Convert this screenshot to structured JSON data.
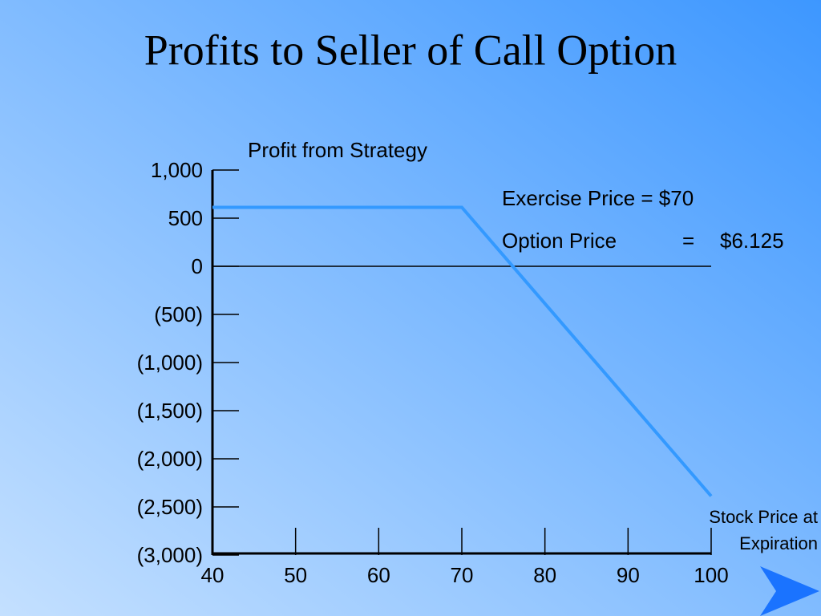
{
  "chart_data": {
    "type": "line",
    "title": "Profits to Seller of Call Option",
    "ylabel": "Profit from Strategy",
    "xlabel_lines": [
      "Stock Price at",
      "Expiration"
    ],
    "annotations": [
      "Exercise Price = $70",
      "Option Price",
      "=",
      "$6.125"
    ],
    "x": [
      40,
      70,
      100
    ],
    "series": [
      {
        "name": "Profit",
        "color": "#3399ff",
        "values": [
          612.5,
          612.5,
          -2387.5
        ]
      }
    ],
    "xlim": [
      40,
      100
    ],
    "xticks": [
      40,
      50,
      60,
      70,
      80,
      90,
      100
    ],
    "ylim": [
      -3000,
      1000
    ],
    "yticks": [
      {
        "value": 1000,
        "label": "1,000"
      },
      500,
      0,
      {
        "value": -500,
        "label": "(500)"
      },
      {
        "value": -1000,
        "label": "(1,000)"
      },
      {
        "value": -1500,
        "label": "(1,500)"
      },
      {
        "value": -2000,
        "label": "(2,000)"
      },
      {
        "value": -2500,
        "label": "(2,500)"
      },
      {
        "value": -3000,
        "label": "(3,000)"
      }
    ]
  }
}
